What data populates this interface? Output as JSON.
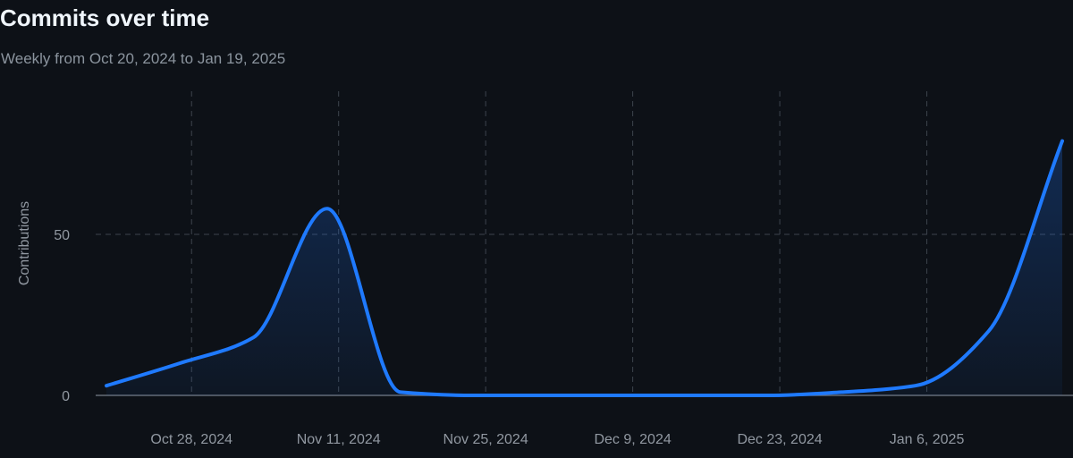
{
  "header": {
    "title": "Commits over time",
    "subtitle": "Weekly from Oct 20, 2024 to Jan 19, 2025"
  },
  "colors": {
    "background": "#0d1117",
    "line": "#1f7aff",
    "grid": "#3d444d",
    "axis": "#656c76",
    "tick_text": "#9198a1"
  },
  "chart_data": {
    "type": "area",
    "title": "Commits over time",
    "subtitle": "Weekly from Oct 20, 2024 to Jan 19, 2025",
    "xlabel": "",
    "ylabel": "Contributions",
    "x": [
      "Oct 20, 2024",
      "Oct 27, 2024",
      "Nov 3, 2024",
      "Nov 10, 2024",
      "Nov 17, 2024",
      "Nov 24, 2024",
      "Dec 1, 2024",
      "Dec 8, 2024",
      "Dec 15, 2024",
      "Dec 22, 2024",
      "Dec 29, 2024",
      "Jan 5, 2025",
      "Jan 12, 2025",
      "Jan 19, 2025"
    ],
    "series": [
      {
        "values": [
          3,
          10,
          18,
          58,
          1,
          0,
          0,
          0,
          0,
          0,
          1,
          3,
          20,
          79
        ]
      }
    ],
    "xticks": [
      "Oct 28, 2024",
      "Nov 11, 2024",
      "Nov 25, 2024",
      "Dec 9, 2024",
      "Dec 23, 2024",
      "Jan 6, 2025"
    ],
    "yticks": [
      "0",
      "50"
    ],
    "ylim": [
      0,
      100
    ],
    "grid": true,
    "legend": "none"
  }
}
